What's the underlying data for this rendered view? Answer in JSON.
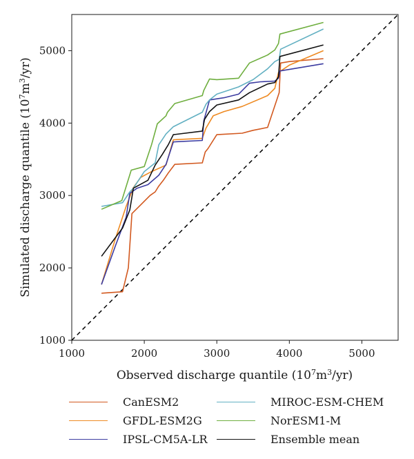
{
  "chart_data": {
    "type": "line",
    "title": "",
    "xlabel": "Observed discharge quantile (10⁷m³/yr)",
    "ylabel": "Simulated discharge quantile (10⁷m³/yr)",
    "xlabel_parts": {
      "pre": "Observed discharge quantile (10",
      "sup1": "7",
      "mid": "m",
      "sup2": "3",
      "post": "/yr)"
    },
    "ylabel_parts": {
      "pre": "Simulated discharge quantile (10",
      "sup1": "7",
      "mid": "m",
      "sup2": "3",
      "post": "/yr)"
    },
    "xlim": [
      1000,
      5500
    ],
    "ylim": [
      1000,
      5500
    ],
    "xticks": [
      1000,
      2000,
      3000,
      4000,
      5000
    ],
    "yticks": [
      1000,
      2000,
      3000,
      4000,
      5000
    ],
    "xtick_labels": [
      "1000",
      "2000",
      "3000",
      "4000",
      "5000"
    ],
    "ytick_labels": [
      "1000",
      "2000",
      "3000",
      "4000",
      "5000"
    ],
    "grid": false,
    "legend_position": "bottom",
    "reference_line": {
      "style": "dashed",
      "color": "#000000",
      "from": [
        1000,
        1000
      ],
      "to": [
        5500,
        5500
      ]
    },
    "series": [
      {
        "name": "CanESM2",
        "color": "#d2581e",
        "x": [
          1410,
          1700,
          1780,
          1830,
          1960,
          2080,
          2150,
          2200,
          2270,
          2330,
          2420,
          2800,
          2840,
          2880,
          3000,
          3350,
          3500,
          3700,
          3820,
          3860,
          3880,
          4000,
          4470
        ],
        "y": [
          1650,
          1670,
          2000,
          2750,
          2880,
          3000,
          3050,
          3130,
          3220,
          3310,
          3430,
          3450,
          3600,
          3650,
          3840,
          3860,
          3900,
          3940,
          4300,
          4420,
          4830,
          4850,
          4890
        ]
      },
      {
        "name": "GFDL-ESM2G",
        "color": "#ee8a22",
        "x": [
          1410,
          1600,
          1750,
          1850,
          1950,
          2100,
          2300,
          2400,
          2800,
          2850,
          2950,
          3100,
          3350,
          3700,
          3800,
          3850,
          4000,
          4470
        ],
        "y": [
          1770,
          2400,
          2850,
          3110,
          3250,
          3330,
          3420,
          3770,
          3790,
          3930,
          4100,
          4160,
          4230,
          4380,
          4480,
          4700,
          4800,
          5000
        ]
      },
      {
        "name": "IPSL-CM5A-LR",
        "color": "#3b3ba0",
        "x": [
          1410,
          1600,
          1750,
          1800,
          1900,
          2050,
          2200,
          2300,
          2400,
          2800,
          2820,
          2900,
          3100,
          3300,
          3450,
          3600,
          3800,
          3850,
          3870,
          4470
        ],
        "y": [
          1770,
          2300,
          2700,
          3030,
          3100,
          3150,
          3280,
          3430,
          3740,
          3760,
          4030,
          4320,
          4350,
          4400,
          4550,
          4570,
          4580,
          4620,
          4720,
          4820
        ]
      },
      {
        "name": "MIROC-ESM-CHEM",
        "color": "#62b0c2",
        "x": [
          1410,
          1700,
          1800,
          1850,
          2000,
          2150,
          2200,
          2300,
          2400,
          2800,
          2850,
          2900,
          3000,
          3300,
          3500,
          3700,
          3800,
          3860,
          3880,
          4470
        ],
        "y": [
          2850,
          2900,
          3050,
          3100,
          3330,
          3450,
          3700,
          3850,
          3950,
          4150,
          4260,
          4320,
          4400,
          4500,
          4600,
          4750,
          4850,
          4880,
          5020,
          5300
        ]
      },
      {
        "name": "NorESM1-M",
        "color": "#6eae3e",
        "x": [
          1410,
          1690,
          1820,
          2000,
          2100,
          2180,
          2300,
          2320,
          2420,
          2800,
          2820,
          2880,
          2900,
          3000,
          3300,
          3450,
          3700,
          3800,
          3850,
          3870,
          4470
        ],
        "y": [
          2810,
          2930,
          3350,
          3400,
          3700,
          3990,
          4100,
          4150,
          4270,
          4380,
          4450,
          4570,
          4610,
          4600,
          4620,
          4830,
          4940,
          5010,
          5100,
          5230,
          5390
        ]
      },
      {
        "name": "Ensemble mean",
        "color": "#111111",
        "x": [
          1410,
          1700,
          1800,
          1850,
          2050,
          2150,
          2250,
          2330,
          2400,
          2800,
          2830,
          2900,
          3000,
          3300,
          3450,
          3700,
          3800,
          3850,
          3870,
          4470
        ],
        "y": [
          2160,
          2550,
          2800,
          3100,
          3210,
          3420,
          3570,
          3700,
          3840,
          3890,
          4050,
          4160,
          4250,
          4320,
          4420,
          4540,
          4560,
          4640,
          4920,
          5080
        ]
      }
    ]
  }
}
